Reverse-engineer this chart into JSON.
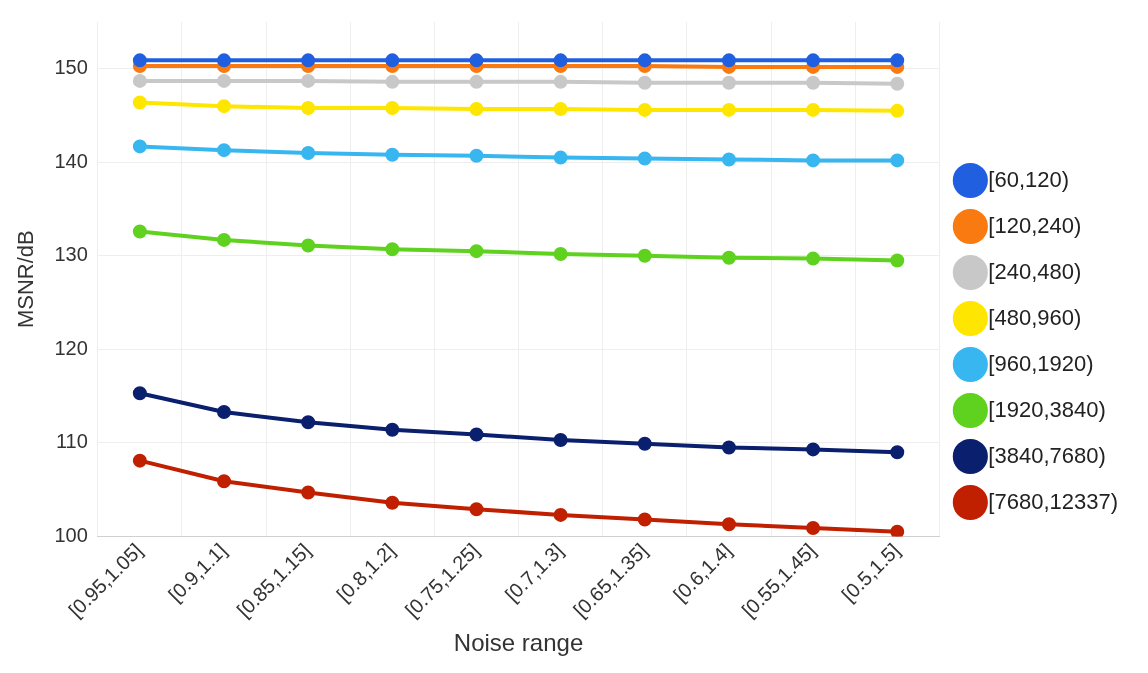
{
  "chart_data": {
    "type": "line",
    "xlabel": "Noise range",
    "ylabel": "MSNR/dB",
    "categories": [
      "[0.95,1.05]",
      "[0.9,1.1]",
      "[0.85,1.15]",
      "[0.8,1.2]",
      "[0.75,1.25]",
      "[0.7,1.3]",
      "[0.65,1.35]",
      "[0.6,1.4]",
      "[0.55,1.45]",
      "[0.5,1.5]"
    ],
    "series": [
      {
        "name": "[60,120)",
        "color": "#1f5fe0",
        "values": [
          150.9,
          150.9,
          150.9,
          150.9,
          150.9,
          150.9,
          150.9,
          150.9,
          150.9,
          150.9
        ]
      },
      {
        "name": "[120,240)",
        "color": "#fa7a12",
        "values": [
          150.3,
          150.3,
          150.3,
          150.3,
          150.3,
          150.3,
          150.3,
          150.2,
          150.2,
          150.2
        ]
      },
      {
        "name": "[240,480)",
        "color": "#c8c8c8",
        "values": [
          148.7,
          148.7,
          148.7,
          148.6,
          148.6,
          148.6,
          148.5,
          148.5,
          148.5,
          148.4
        ]
      },
      {
        "name": "[480,960)",
        "color": "#ffe600",
        "values": [
          146.4,
          146.0,
          145.8,
          145.8,
          145.7,
          145.7,
          145.6,
          145.6,
          145.6,
          145.5
        ]
      },
      {
        "name": "[960,1920)",
        "color": "#38b6f0",
        "values": [
          141.7,
          141.3,
          141.0,
          140.8,
          140.7,
          140.5,
          140.4,
          140.3,
          140.2,
          140.2
        ]
      },
      {
        "name": "[1920,3840)",
        "color": "#5fd11f",
        "values": [
          132.6,
          131.7,
          131.1,
          130.7,
          130.5,
          130.2,
          130.0,
          129.8,
          129.7,
          129.5
        ]
      },
      {
        "name": "[3840,7680)",
        "color": "#0a1f6e",
        "values": [
          115.3,
          113.3,
          112.2,
          111.4,
          110.9,
          110.3,
          109.9,
          109.5,
          109.3,
          109.0
        ]
      },
      {
        "name": "[7680,12337)",
        "color": "#c02000",
        "values": [
          108.1,
          105.9,
          104.7,
          103.6,
          102.9,
          102.3,
          101.8,
          101.3,
          100.9,
          100.5
        ]
      }
    ],
    "ylim": [
      100,
      155
    ],
    "yticks": [
      100,
      110,
      120,
      130,
      140,
      150
    ],
    "grid": true,
    "legend": "right",
    "marker": "circle",
    "line_style": "solid"
  }
}
